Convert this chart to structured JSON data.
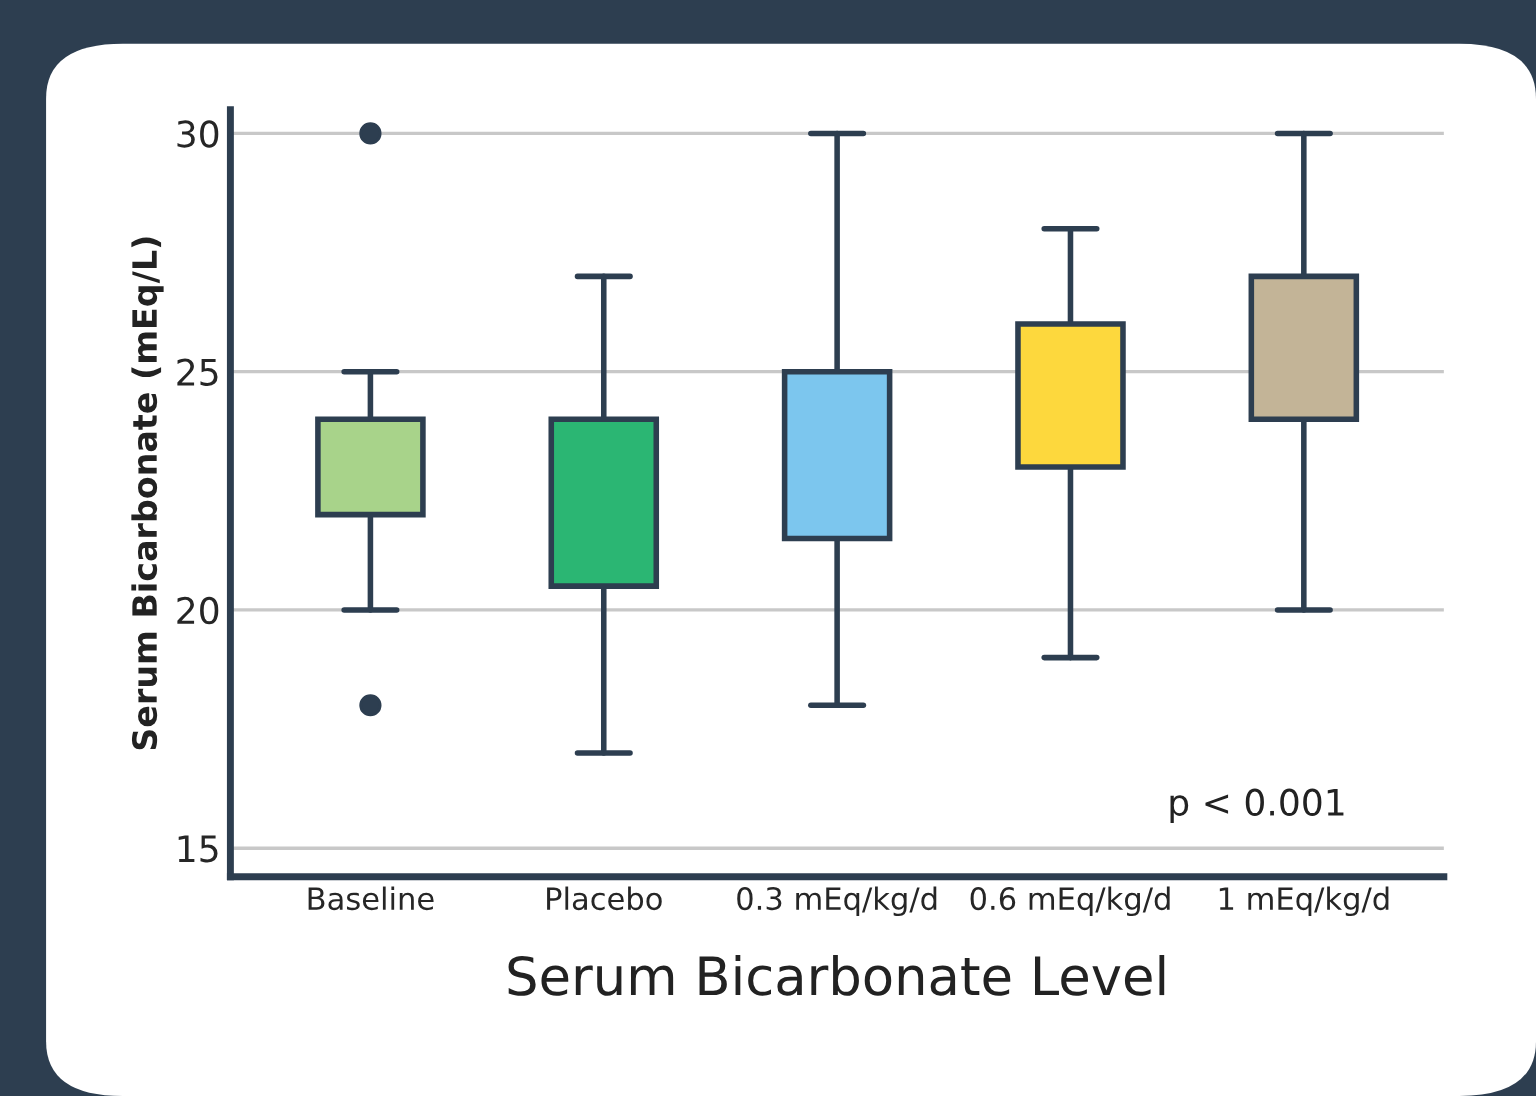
{
  "chart_data": {
    "type": "box",
    "xlabel": "Serum Bicarbonate Level",
    "ylabel": "Serum Bicarbonate (mEq/L)",
    "categories": [
      "Baseline",
      "Placebo",
      "0.3 mEq/kg/d",
      "0.6 mEq/kg/d",
      "1 mEq/kg/d"
    ],
    "colors": [
      "#a8d38a",
      "#2bb673",
      "#7cc6ee",
      "#fdd83d",
      "#c3b497"
    ],
    "boxes": [
      {
        "low": 20,
        "q1": 22,
        "median": 23,
        "q3": 24,
        "high": 25,
        "outliers": [
          18,
          30
        ]
      },
      {
        "low": 17,
        "q1": 20.5,
        "median": 23,
        "q3": 24,
        "high": 27
      },
      {
        "low": 18,
        "q1": 21.5,
        "median": 24,
        "q3": 25,
        "high": 30
      },
      {
        "low": 19,
        "q1": 23,
        "median": 25,
        "q3": 26,
        "high": 28
      },
      {
        "low": 20,
        "q1": 24,
        "median": 26,
        "q3": 27,
        "high": 30
      }
    ],
    "ylim": [
      14.4,
      30.5
    ],
    "yticks": [
      15,
      20,
      25,
      30
    ],
    "grid": "y",
    "annotations": [
      "p < 0.001"
    ]
  }
}
